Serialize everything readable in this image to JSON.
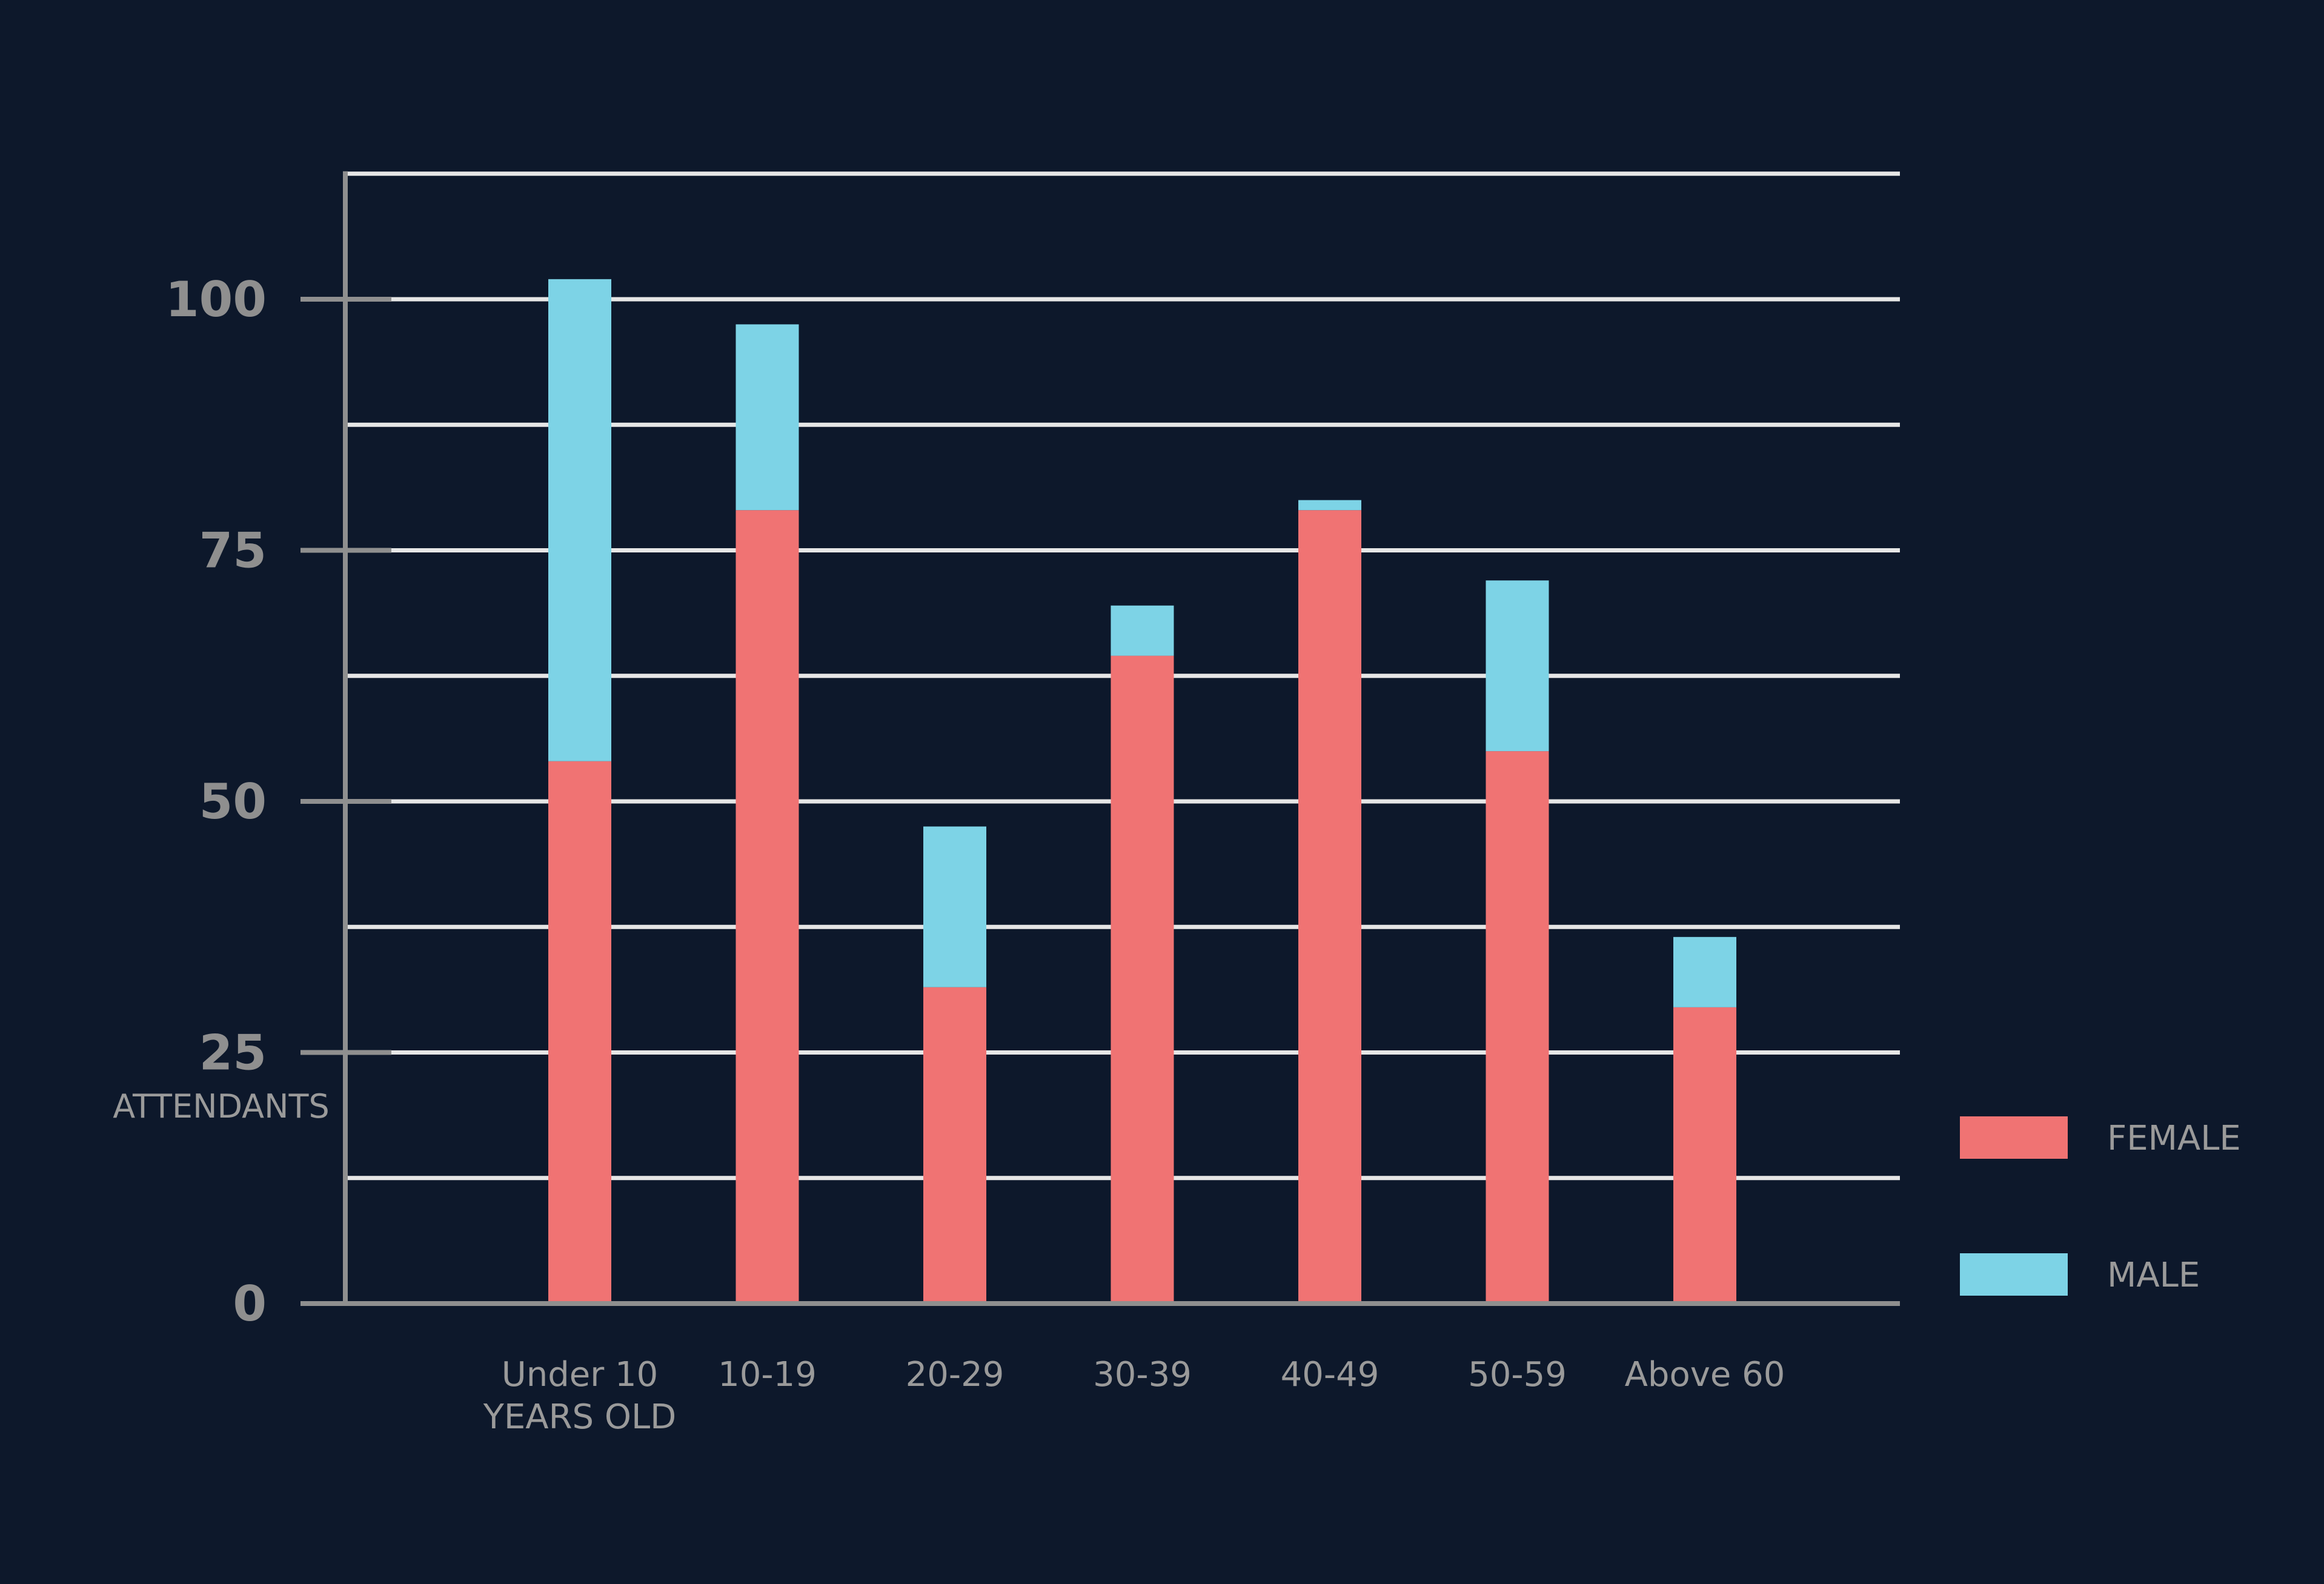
{
  "colors": {
    "background": "#0d182b",
    "female": "#f07373",
    "male": "#7dd3e6",
    "gridline": "#e6e6e6",
    "axis": "#8f8f8f",
    "text": "#9a9a9a"
  },
  "chart_data": {
    "type": "bar",
    "stacked": true,
    "categories": [
      [
        "Under 10",
        "YEARS OLD"
      ],
      [
        "10-19"
      ],
      [
        "20-29"
      ],
      [
        "30-39"
      ],
      [
        "40-49"
      ],
      [
        "50-59"
      ],
      [
        "Above 60"
      ]
    ],
    "series": [
      {
        "name": "FEMALE",
        "color": "#f07373",
        "values": [
          54,
          79,
          31.5,
          64.5,
          79,
          55,
          29.5
        ]
      },
      {
        "name": "MALE",
        "color": "#7dd3e6",
        "values": [
          48,
          18.5,
          16,
          5,
          1,
          17,
          7
        ]
      }
    ],
    "ylabel": "ATTENDANTS",
    "ylim": [
      0,
      112.5
    ],
    "yticks": [
      0,
      25,
      50,
      75,
      100
    ],
    "gridlines": [
      12.5,
      25,
      37.5,
      50,
      62.5,
      75,
      87.5,
      100,
      112.5
    ],
    "legend_position": "right"
  }
}
